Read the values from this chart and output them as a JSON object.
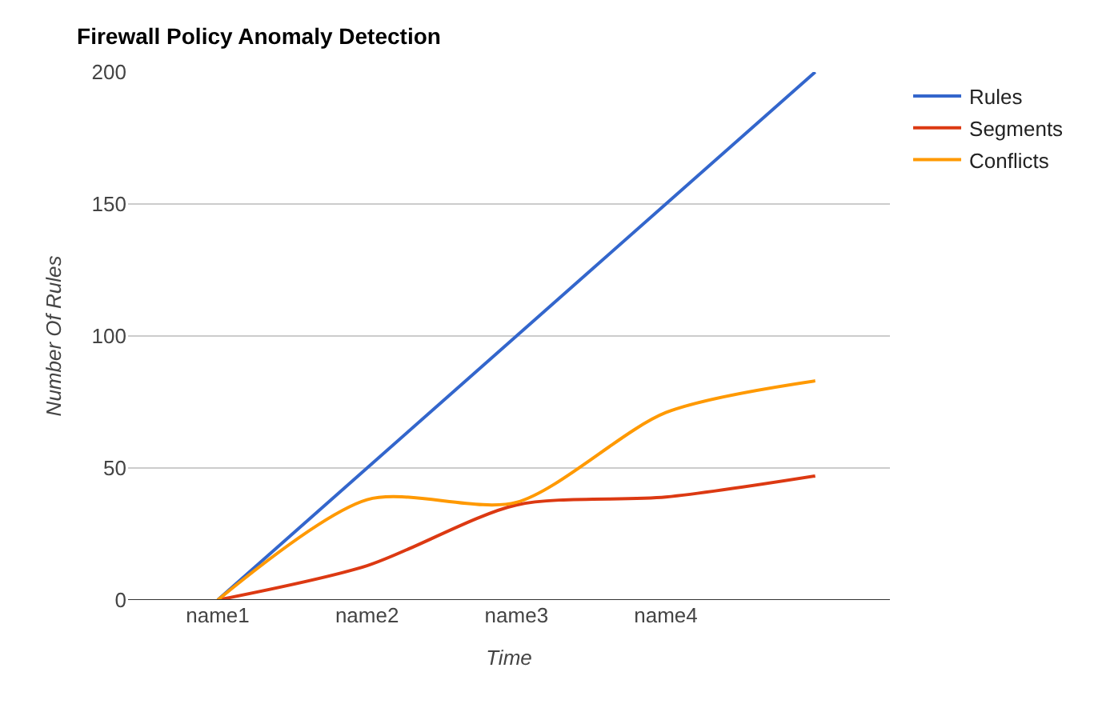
{
  "chart_data": {
    "type": "line",
    "title": "Firewall Policy Anomaly Detection",
    "xlabel": "Time",
    "ylabel": "Number Of Rules",
    "categories": [
      "name1",
      "name2",
      "name3",
      "name4",
      null
    ],
    "series": [
      {
        "name": "Rules",
        "color": "#3366cc",
        "values": [
          0,
          50,
          100,
          150,
          200
        ]
      },
      {
        "name": "Segments",
        "color": "#dc3912",
        "values": [
          0,
          13,
          36,
          39,
          47
        ]
      },
      {
        "name": "Conflicts",
        "color": "#ff9900",
        "values": [
          0,
          38,
          37,
          71,
          83
        ]
      }
    ],
    "ylim": [
      0,
      200
    ],
    "yticks": [
      0,
      50,
      100,
      150,
      200
    ],
    "grid": "y",
    "legend": "top right",
    "marker": "none",
    "line_style": "solid"
  }
}
